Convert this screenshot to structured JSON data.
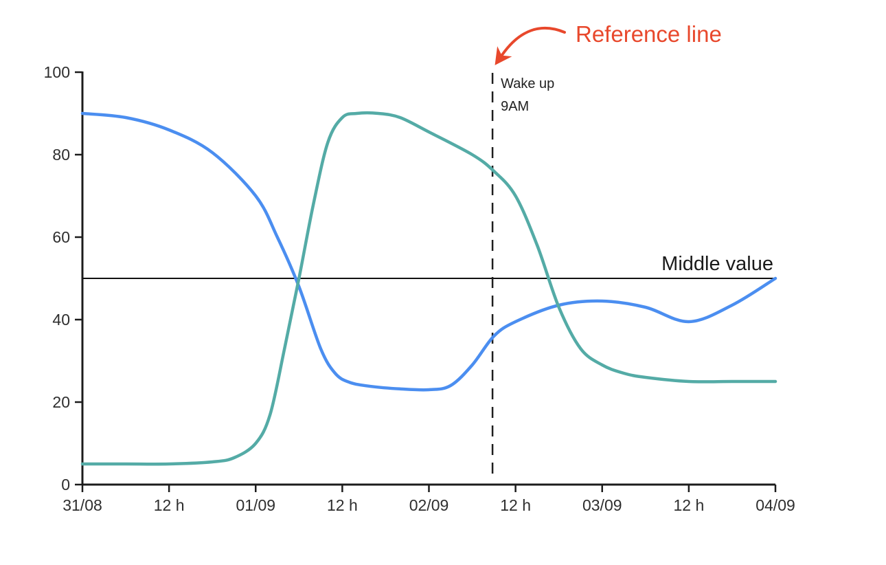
{
  "chart_data": {
    "type": "line",
    "title": "",
    "xlabel": "",
    "ylabel": "",
    "x_unit": "hours since 31/08 00:00",
    "xlim": [
      0,
      96
    ],
    "ylim": [
      0,
      100
    ],
    "grid": false,
    "legend": "none",
    "x_ticks": [
      {
        "hour": 0,
        "label": "31/08"
      },
      {
        "hour": 12,
        "label": "12 h"
      },
      {
        "hour": 24,
        "label": "01/09"
      },
      {
        "hour": 36,
        "label": "12 h"
      },
      {
        "hour": 48,
        "label": "02/09"
      },
      {
        "hour": 60,
        "label": "12 h"
      },
      {
        "hour": 72,
        "label": "03/09"
      },
      {
        "hour": 84,
        "label": "12 h"
      },
      {
        "hour": 96,
        "label": "04/09"
      }
    ],
    "y_ticks": [
      {
        "value": 0,
        "label": "0"
      },
      {
        "value": 20,
        "label": "20"
      },
      {
        "value": 40,
        "label": "40"
      },
      {
        "value": 60,
        "label": "60"
      },
      {
        "value": 80,
        "label": "80"
      },
      {
        "value": 100,
        "label": "100"
      }
    ],
    "series": [
      {
        "id": "blue",
        "color": "#4b8ef0",
        "points": [
          [
            0,
            90
          ],
          [
            6,
            89
          ],
          [
            12,
            86
          ],
          [
            18,
            80.5
          ],
          [
            24,
            70
          ],
          [
            27,
            60
          ],
          [
            30,
            48
          ],
          [
            33,
            33
          ],
          [
            35,
            27
          ],
          [
            37,
            24.8
          ],
          [
            40,
            23.8
          ],
          [
            44,
            23.2
          ],
          [
            48,
            23
          ],
          [
            51,
            24
          ],
          [
            54,
            29
          ],
          [
            57,
            36
          ],
          [
            60,
            39.5
          ],
          [
            66,
            43.5
          ],
          [
            72,
            44.5
          ],
          [
            78,
            43
          ],
          [
            84,
            39.5
          ],
          [
            90,
            43.5
          ],
          [
            96,
            50
          ]
        ]
      },
      {
        "id": "teal",
        "color": "#54aba6",
        "points": [
          [
            0,
            5
          ],
          [
            6,
            5
          ],
          [
            12,
            5
          ],
          [
            18,
            5.5
          ],
          [
            21,
            6.5
          ],
          [
            24,
            10
          ],
          [
            26,
            17
          ],
          [
            28,
            33
          ],
          [
            30,
            50
          ],
          [
            32,
            68
          ],
          [
            34,
            83
          ],
          [
            36,
            89
          ],
          [
            38,
            90
          ],
          [
            41,
            90
          ],
          [
            44,
            89
          ],
          [
            48,
            85.5
          ],
          [
            54,
            80
          ],
          [
            57,
            76
          ],
          [
            60,
            70
          ],
          [
            63,
            58
          ],
          [
            66,
            43
          ],
          [
            69,
            33
          ],
          [
            72,
            29
          ],
          [
            75,
            27
          ],
          [
            78,
            26
          ],
          [
            84,
            25
          ],
          [
            90,
            25
          ],
          [
            96,
            25
          ]
        ]
      }
    ],
    "reference_lines": {
      "horizontal": {
        "value": 50,
        "label": "Middle value"
      },
      "vertical": {
        "hour": 57,
        "label_line1": "Wake up",
        "label_line2": "9AM"
      }
    },
    "annotation": {
      "text": "Reference line",
      "color": "#e8482c"
    }
  }
}
